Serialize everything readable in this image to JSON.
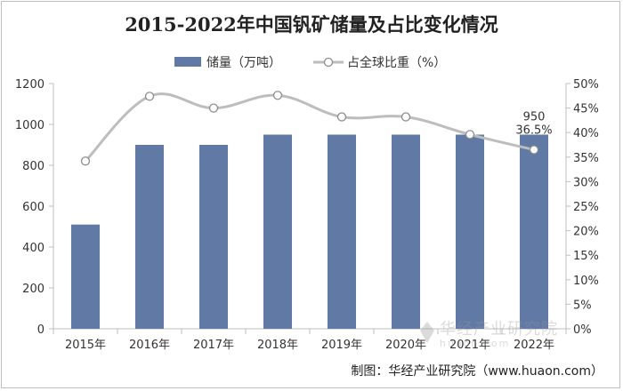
{
  "chart_data": {
    "type": "bar",
    "title": "2015-2022年中国钒矿储量及占比变化情况",
    "categories": [
      "2015年",
      "2016年",
      "2017年",
      "2018年",
      "2019年",
      "2020年",
      "2021年",
      "2022年"
    ],
    "series": [
      {
        "name": "储量（万吨）",
        "type": "bar",
        "axis": "left",
        "color": "#6079a5",
        "values": [
          510,
          900,
          900,
          950,
          950,
          950,
          950,
          950
        ]
      },
      {
        "name": "占全球比重（%）",
        "type": "line",
        "axis": "right",
        "color": "#bdbdbd",
        "values": [
          34.2,
          47.4,
          45.0,
          47.6,
          43.2,
          43.2,
          39.6,
          36.5
        ]
      }
    ],
    "y_left": {
      "min": 0,
      "max": 1200,
      "ticks": [
        0,
        200,
        400,
        600,
        800,
        1000,
        1200
      ]
    },
    "y_right": {
      "min": 0,
      "max": 50,
      "ticks": [
        "0%",
        "5%",
        "10%",
        "15%",
        "20%",
        "25%",
        "30%",
        "35%",
        "40%",
        "45%",
        "50%"
      ]
    },
    "data_labels": [
      {
        "category": "2022年",
        "text": "950"
      },
      {
        "category": "2022年",
        "text": "36.5%"
      }
    ],
    "legend": {
      "position": "top"
    },
    "grid": false
  },
  "credit": "制图：华经产业研究院（www.huaon.com）",
  "watermark": {
    "cn": "华经产业研究院",
    "en": "huaon.com"
  }
}
